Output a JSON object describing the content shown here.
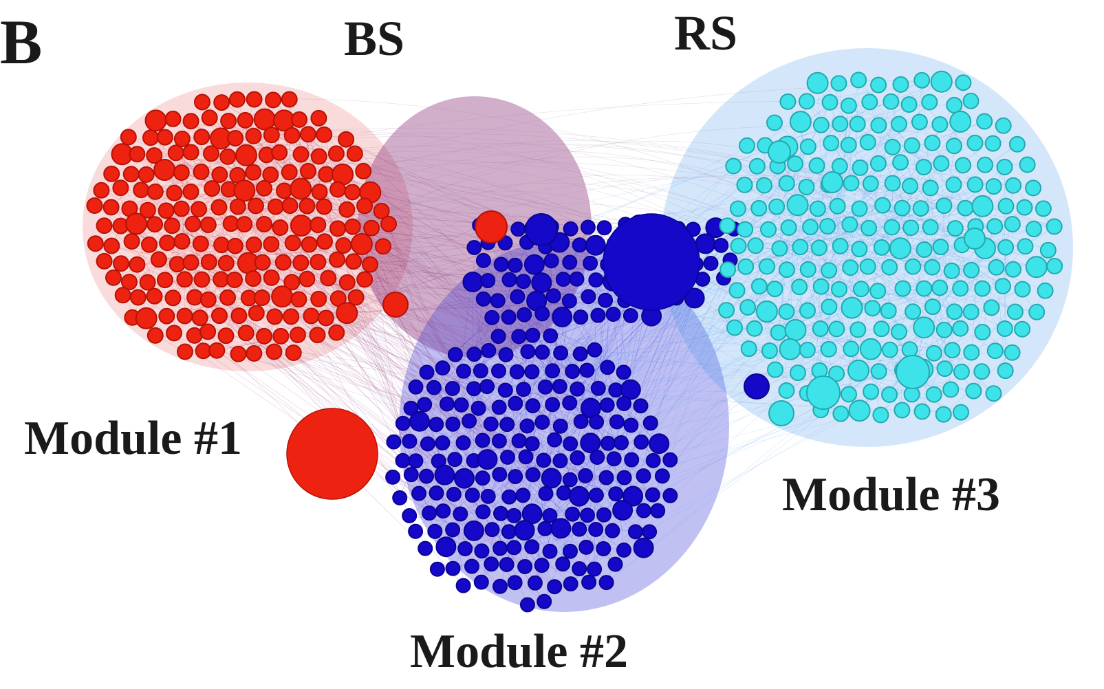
{
  "panel_letter": "B",
  "group_labels": {
    "left": "BS",
    "right": "RS"
  },
  "modules": [
    {
      "id": "module1",
      "label": "Module #1",
      "color": "#ee2211",
      "stroke": "#b51206"
    },
    {
      "id": "module2",
      "label": "Module #2",
      "color": "#1508c8",
      "stroke": "#0a0590"
    },
    {
      "id": "module3",
      "label": "Module #3",
      "color": "#3de3e8",
      "stroke": "#22a8b0"
    }
  ],
  "edge_colors": {
    "module1": "#e03535",
    "bridge": "#7a1a6a",
    "module2": "#3030d8",
    "module3": "#3a8fe8"
  }
}
